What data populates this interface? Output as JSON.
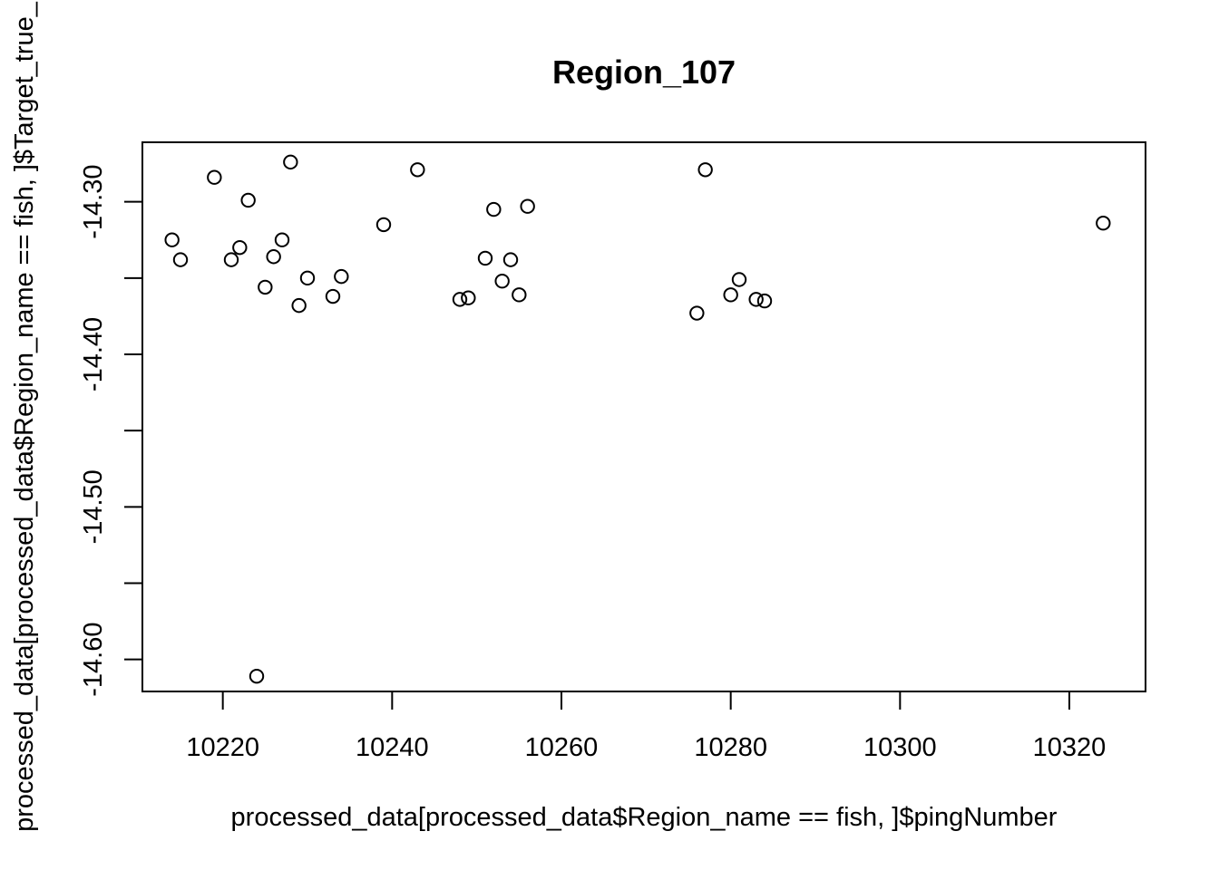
{
  "chart_data": {
    "type": "scatter",
    "title": "Region_107",
    "xlabel": "processed_data[processed_data$Region_name == fish, ]$pingNumber",
    "ylabel": "processed_data[processed_data$Region_name == fish, ]$Target_true_",
    "xlim": [
      10210.5,
      10329
    ],
    "ylim": [
      -14.621,
      -14.261
    ],
    "x_ticks": [
      10220,
      10240,
      10260,
      10280,
      10300,
      10320
    ],
    "x_tick_labels": [
      "10220",
      "10240",
      "10260",
      "10280",
      "10300",
      "10320"
    ],
    "y_ticks": [
      -14.6,
      -14.55,
      -14.5,
      -14.45,
      -14.4,
      -14.35,
      -14.3
    ],
    "y_tick_labels": [
      "-14.60",
      "",
      "-14.50",
      "",
      "-14.40",
      "",
      "-14.30"
    ],
    "grid": false,
    "legend": "none",
    "marker": "open-circle",
    "colors": {
      "point": "#000000",
      "axis": "#000000",
      "background": "#ffffff"
    },
    "points": [
      {
        "x": 10214,
        "y": -14.325
      },
      {
        "x": 10215,
        "y": -14.338
      },
      {
        "x": 10219,
        "y": -14.284
      },
      {
        "x": 10221,
        "y": -14.338
      },
      {
        "x": 10222,
        "y": -14.33
      },
      {
        "x": 10223,
        "y": -14.299
      },
      {
        "x": 10224,
        "y": -14.611
      },
      {
        "x": 10225,
        "y": -14.356
      },
      {
        "x": 10226,
        "y": -14.336
      },
      {
        "x": 10227,
        "y": -14.325
      },
      {
        "x": 10228,
        "y": -14.274
      },
      {
        "x": 10229,
        "y": -14.368
      },
      {
        "x": 10230,
        "y": -14.35
      },
      {
        "x": 10233,
        "y": -14.362
      },
      {
        "x": 10234,
        "y": -14.349
      },
      {
        "x": 10239,
        "y": -14.315
      },
      {
        "x": 10243,
        "y": -14.279
      },
      {
        "x": 10248,
        "y": -14.364
      },
      {
        "x": 10249,
        "y": -14.363
      },
      {
        "x": 10251,
        "y": -14.337
      },
      {
        "x": 10252,
        "y": -14.305
      },
      {
        "x": 10253,
        "y": -14.352
      },
      {
        "x": 10254,
        "y": -14.338
      },
      {
        "x": 10255,
        "y": -14.361
      },
      {
        "x": 10256,
        "y": -14.303
      },
      {
        "x": 10276,
        "y": -14.373
      },
      {
        "x": 10277,
        "y": -14.279
      },
      {
        "x": 10280,
        "y": -14.361
      },
      {
        "x": 10281,
        "y": -14.351
      },
      {
        "x": 10283,
        "y": -14.364
      },
      {
        "x": 10284,
        "y": -14.365
      },
      {
        "x": 10324,
        "y": -14.314
      }
    ]
  }
}
